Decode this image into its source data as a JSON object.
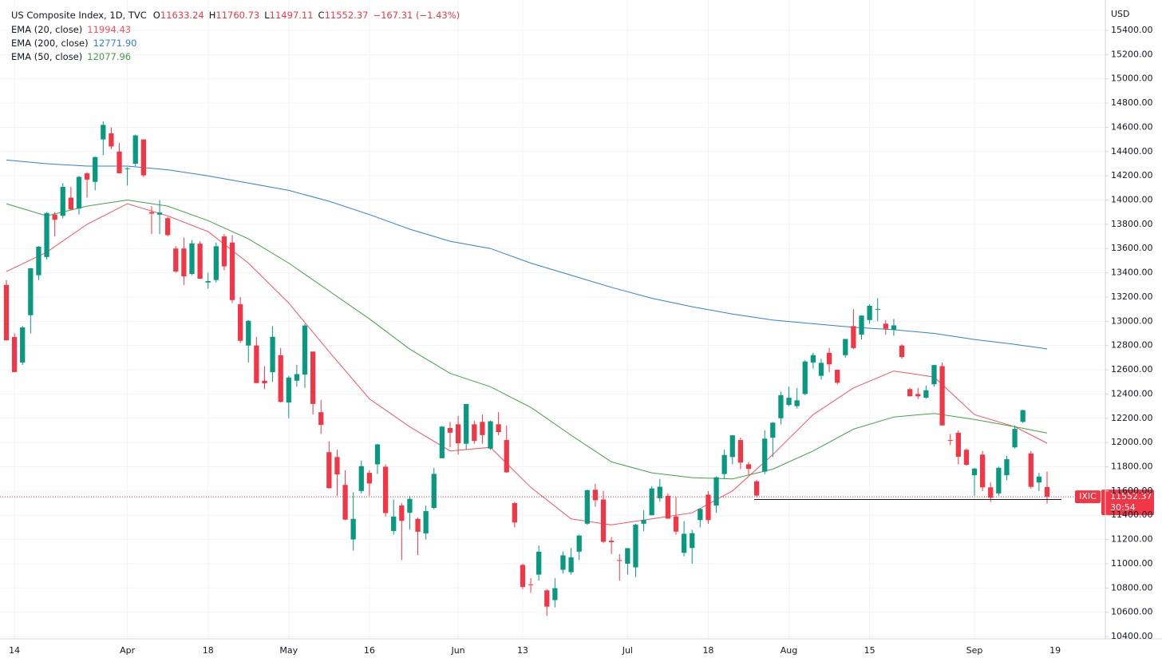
{
  "chart_data": {
    "type": "candlestick",
    "title": "US Composite Index, 1D, TVC",
    "currency": "USD",
    "ticker": "IXIC",
    "countdown": "30:54",
    "change": "−167.31 (−1.43%)",
    "ohlc_letters": [
      "O",
      "H",
      "L",
      "C"
    ],
    "up_color": "#089981",
    "down_color": "#f23645",
    "support_line": 11530,
    "categories": [
      null,
      "14",
      null,
      null,
      null,
      null,
      null,
      null,
      null,
      null,
      null,
      null,
      null,
      null,
      null,
      "Apr",
      null,
      null,
      null,
      null,
      null,
      null,
      null,
      null,
      null,
      "18",
      null,
      null,
      null,
      null,
      null,
      null,
      null,
      null,
      null,
      "May",
      null,
      null,
      null,
      null,
      null,
      null,
      null,
      null,
      null,
      "16",
      null,
      null,
      null,
      null,
      null,
      null,
      null,
      null,
      null,
      null,
      "Jun",
      null,
      null,
      null,
      null,
      null,
      null,
      null,
      "13",
      null,
      null,
      null,
      null,
      null,
      null,
      null,
      null,
      null,
      null,
      null,
      null,
      "Jul",
      null,
      null,
      null,
      null,
      null,
      null,
      null,
      null,
      null,
      "18",
      null,
      null,
      null,
      null,
      null,
      null,
      null,
      null,
      null,
      "Aug",
      null,
      null,
      null,
      null,
      null,
      null,
      null,
      null,
      null,
      "15",
      null,
      null,
      null,
      null,
      null,
      null,
      null,
      null,
      null,
      null,
      null,
      null,
      "Sep",
      null,
      null,
      null,
      null,
      null,
      null,
      null,
      null,
      null
    ],
    "next_label": "19",
    "candles": {
      "open": [
        13300,
        12870,
        12660,
        13050,
        13380,
        13530,
        13880,
        13870,
        14020,
        13930,
        14220,
        14150,
        14500,
        14550,
        14400,
        14260,
        14300,
        14500,
        13900,
        13880,
        13850,
        13600,
        13600,
        13390,
        13640,
        13320,
        13340,
        13700,
        13650,
        13140,
        12800,
        12800,
        12510,
        12580,
        12720,
        12330,
        12510,
        12560,
        12750,
        12250,
        11920,
        11880,
        11650,
        11200,
        11600,
        11750,
        11820,
        11800,
        11270,
        11480,
        11420,
        11370,
        11250,
        11460,
        11870,
        12120,
        12150,
        11990,
        12150,
        12170,
        11950,
        12150,
        12020,
        11500,
        10990,
        10830,
        10910,
        10780,
        10700,
        10950,
        10930,
        11100,
        11330,
        11610,
        11530,
        11190,
        11030,
        11000,
        10970,
        11330,
        11400,
        11540,
        11560,
        11390,
        11090,
        11130,
        11360,
        11570,
        11480,
        11740,
        11880,
        12020,
        11820,
        11680,
        11760,
        12040,
        12200,
        12310,
        12300,
        12400,
        12660,
        12550,
        12740,
        12600,
        12720,
        12960,
        12890,
        13010,
        13100,
        12980,
        12930,
        12800,
        12440,
        12400,
        12370,
        12480,
        12630,
        12020,
        12080,
        11940,
        11730,
        11900,
        11630,
        11580,
        11730,
        11960,
        12170,
        11910,
        11670,
        11633.24
      ],
      "high": [
        13340,
        12900,
        12960,
        13440,
        13620,
        13900,
        13900,
        14140,
        14110,
        14200,
        14230,
        14360,
        14650,
        14600,
        14470,
        14270,
        14540,
        14500,
        13950,
        14000,
        13860,
        13620,
        13690,
        13670,
        13660,
        13400,
        13650,
        13720,
        13710,
        13200,
        13010,
        12870,
        12630,
        12960,
        12780,
        12550,
        12640,
        12980,
        12750,
        12350,
        12010,
        11940,
        11770,
        11590,
        11850,
        11770,
        11990,
        11820,
        11530,
        11500,
        11560,
        11380,
        11480,
        11790,
        12135,
        12170,
        12220,
        12320,
        12180,
        12230,
        12180,
        12250,
        12140,
        11510,
        11000,
        10880,
        11150,
        10790,
        10880,
        11100,
        11130,
        11240,
        11610,
        11660,
        11600,
        11220,
        11080,
        11130,
        11330,
        11440,
        11640,
        11700,
        11580,
        11550,
        11350,
        11280,
        11460,
        11600,
        11720,
        11940,
        12060,
        12040,
        11840,
        11690,
        12100,
        12170,
        12420,
        12460,
        12450,
        12680,
        12740,
        12690,
        12780,
        12600,
        12850,
        13100,
        13050,
        13140,
        13190,
        13010,
        13020,
        12810,
        12450,
        12450,
        12470,
        12640,
        12660,
        12070,
        12100,
        11950,
        11790,
        11930,
        11670,
        11800,
        11890,
        12140,
        12270,
        11930,
        11750,
        11760.73
      ],
      "low": [
        12840,
        12580,
        12640,
        12900,
        13340,
        13510,
        13700,
        13850,
        13920,
        13880,
        14020,
        14080,
        14370,
        14420,
        14220,
        14120,
        14280,
        14190,
        13720,
        13720,
        13700,
        13400,
        13300,
        13380,
        13350,
        13270,
        13320,
        13420,
        13150,
        12820,
        12660,
        12490,
        12440,
        12500,
        12330,
        12200,
        12460,
        12450,
        12230,
        12070,
        11620,
        11560,
        11360,
        11110,
        11580,
        11560,
        11740,
        11390,
        11240,
        11030,
        11280,
        11070,
        11200,
        11450,
        11870,
        11960,
        11900,
        11940,
        11990,
        11990,
        11940,
        12060,
        11750,
        11300,
        10790,
        10760,
        10860,
        10570,
        10640,
        10920,
        10910,
        11030,
        11320,
        11470,
        11170,
        11080,
        10860,
        10910,
        10890,
        11270,
        11400,
        11510,
        11370,
        11240,
        11060,
        11000,
        11300,
        11330,
        11420,
        11700,
        11820,
        11780,
        11730,
        11550,
        11740,
        11880,
        12150,
        12300,
        12280,
        12390,
        12610,
        12520,
        12580,
        12480,
        12700,
        12770,
        12850,
        12980,
        13000,
        12890,
        12880,
        12690,
        12380,
        12360,
        12360,
        12460,
        12140,
        11980,
        11820,
        11810,
        11560,
        11600,
        11510,
        11560,
        11690,
        11950,
        12160,
        11620,
        11600,
        11497.11
      ],
      "close": [
        12843,
        12581,
        12949,
        13437,
        13615,
        13893,
        13838,
        14109,
        13923,
        14191,
        14169,
        14354,
        14620,
        14442,
        14221,
        14262,
        14533,
        14204,
        13888,
        13897,
        13711,
        13411,
        13371,
        13643,
        13351,
        13332,
        13619,
        13453,
        13175,
        12839,
        13004,
        12490,
        12488,
        12872,
        12335,
        12536,
        12564,
        12965,
        12318,
        12145,
        11623,
        11737,
        11364,
        11370,
        11805,
        11662,
        11984,
        11418,
        11389,
        11354,
        11535,
        11264,
        11434,
        11741,
        12131,
        12081,
        11994,
        12317,
        12013,
        12061,
        12175,
        12086,
        11754,
        11340,
        10809,
        10828,
        11099,
        10646,
        10798,
        11069,
        11053,
        11232,
        11607,
        11524,
        11181,
        11178,
        11029,
        11128,
        11322,
        11362,
        11621,
        11635,
        11372,
        11265,
        11247,
        11252,
        11452,
        11360,
        11713,
        11897,
        12059,
        11834,
        11782,
        11562,
        12032,
        12163,
        12391,
        12369,
        12348,
        12668,
        12721,
        12657,
        12645,
        12493,
        12854,
        12779,
        13047,
        13128,
        13102,
        12938,
        12966,
        12705,
        12381,
        12381,
        12431,
        12639,
        12141,
        12017,
        11883,
        11816,
        11785,
        11630,
        11544,
        11791,
        11862,
        12112,
        12267,
        11634,
        11719,
        11552.37
      ]
    },
    "series": [
      {
        "name": "EMA (20, close)",
        "color": "#f7525f",
        "value_label": "11994.43",
        "x": [
          0,
          5,
          10,
          15,
          20,
          25,
          30,
          35,
          40,
          45,
          50,
          55,
          60,
          65,
          70,
          75,
          80,
          85,
          90,
          95,
          100,
          105,
          110,
          115,
          120,
          125,
          129
        ],
        "values": [
          13410,
          13570,
          13800,
          13970,
          13870,
          13740,
          13480,
          13150,
          12750,
          12360,
          12130,
          11930,
          11960,
          11630,
          11370,
          11320,
          11370,
          11420,
          11600,
          11900,
          12230,
          12450,
          12590,
          12540,
          12230,
          12130,
          11994.43
        ]
      },
      {
        "name": "EMA (200, close)",
        "color": "#2f7fd6",
        "value_label": "12771.90",
        "x": [
          0,
          5,
          10,
          15,
          20,
          25,
          30,
          35,
          40,
          45,
          50,
          55,
          60,
          65,
          70,
          75,
          80,
          85,
          90,
          95,
          100,
          105,
          110,
          115,
          120,
          125,
          129
        ],
        "values": [
          14330,
          14300,
          14280,
          14280,
          14250,
          14200,
          14140,
          14080,
          13990,
          13880,
          13760,
          13660,
          13600,
          13480,
          13380,
          13280,
          13190,
          13120,
          13060,
          13010,
          12980,
          12950,
          12930,
          12900,
          12850,
          12810,
          12771.9
        ]
      },
      {
        "name": "EMA (50, close)",
        "color": "#43a047",
        "value_label": "12077.96",
        "x": [
          0,
          5,
          10,
          15,
          20,
          25,
          30,
          35,
          40,
          45,
          50,
          55,
          60,
          65,
          70,
          75,
          80,
          85,
          90,
          95,
          100,
          105,
          110,
          115,
          120,
          125,
          129
        ],
        "values": [
          13970,
          13870,
          13950,
          14000,
          13950,
          13830,
          13680,
          13480,
          13250,
          13020,
          12770,
          12570,
          12460,
          12290,
          12060,
          11840,
          11750,
          11710,
          11700,
          11780,
          11930,
          12110,
          12210,
          12240,
          12190,
          12130,
          12077.96
        ]
      }
    ],
    "ylim": [
      10400,
      15400
    ],
    "yticks": [
      {
        "value": 10400,
        "label": "10400.00"
      },
      {
        "value": 10600,
        "label": "10600.00"
      },
      {
        "value": 10800,
        "label": "10800.00"
      },
      {
        "value": 11000,
        "label": "11000.00"
      },
      {
        "value": 11200,
        "label": "11200.00"
      },
      {
        "value": 11400,
        "label": "11400.00"
      },
      {
        "value": 11600,
        "label": "11600.00"
      },
      {
        "value": 11800,
        "label": "11800.00"
      },
      {
        "value": 12000,
        "label": "12000.00"
      },
      {
        "value": 12200,
        "label": "12200.00"
      },
      {
        "value": 12400,
        "label": "12400.00"
      },
      {
        "value": 12600,
        "label": "12600.00"
      },
      {
        "value": 12800,
        "label": "12800.00"
      },
      {
        "value": 13000,
        "label": "13000.00"
      },
      {
        "value": 13200,
        "label": "13200.00"
      },
      {
        "value": 13400,
        "label": "13400.00"
      },
      {
        "value": 13600,
        "label": "13600.00"
      },
      {
        "value": 13800,
        "label": "13800.00"
      },
      {
        "value": 14000,
        "label": "14000.00"
      },
      {
        "value": 14200,
        "label": "14200.00"
      },
      {
        "value": 14400,
        "label": "14400.00"
      },
      {
        "value": 14600,
        "label": "14600.00"
      },
      {
        "value": 14800,
        "label": "14800.00"
      },
      {
        "value": 15000,
        "label": "15000.00"
      },
      {
        "value": 15200,
        "label": "15200.00"
      },
      {
        "value": 15400,
        "label": "15400.00"
      }
    ],
    "grid": true
  }
}
